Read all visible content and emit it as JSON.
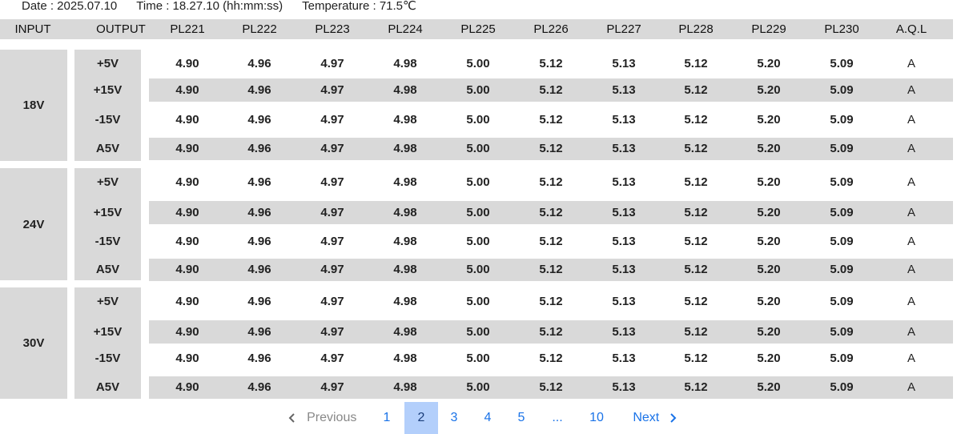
{
  "status": {
    "date": "Date : 2025.07.10",
    "time": "Time : 18.27.10 (hh:mm:ss)",
    "temperature": "Temperature : 71.5℃"
  },
  "table": {
    "headers": [
      "INPUT",
      "OUTPUT",
      "PL221",
      "PL222",
      "PL223",
      "PL224",
      "PL225",
      "PL226",
      "PL227",
      "PL228",
      "PL229",
      "PL230",
      "A.Q.L"
    ],
    "groups": [
      {
        "input": "18V",
        "rows": [
          {
            "output": "+5V",
            "values": [
              "4.90",
              "4.96",
              "4.97",
              "4.98",
              "5.00",
              "5.12",
              "5.13",
              "5.12",
              "5.20",
              "5.09"
            ],
            "aql": "A"
          },
          {
            "output": "+15V",
            "values": [
              "4.90",
              "4.96",
              "4.97",
              "4.98",
              "5.00",
              "5.12",
              "5.13",
              "5.12",
              "5.20",
              "5.09"
            ],
            "aql": "A"
          },
          {
            "output": "-15V",
            "values": [
              "4.90",
              "4.96",
              "4.97",
              "4.98",
              "5.00",
              "5.12",
              "5.13",
              "5.12",
              "5.20",
              "5.09"
            ],
            "aql": "A"
          },
          {
            "output": "A5V",
            "values": [
              "4.90",
              "4.96",
              "4.97",
              "4.98",
              "5.00",
              "5.12",
              "5.13",
              "5.12",
              "5.20",
              "5.09"
            ],
            "aql": "A"
          }
        ]
      },
      {
        "input": "24V",
        "rows": [
          {
            "output": "+5V",
            "values": [
              "4.90",
              "4.96",
              "4.97",
              "4.98",
              "5.00",
              "5.12",
              "5.13",
              "5.12",
              "5.20",
              "5.09"
            ],
            "aql": "A"
          },
          {
            "output": "+15V",
            "values": [
              "4.90",
              "4.96",
              "4.97",
              "4.98",
              "5.00",
              "5.12",
              "5.13",
              "5.12",
              "5.20",
              "5.09"
            ],
            "aql": "A"
          },
          {
            "output": "-15V",
            "values": [
              "4.90",
              "4.96",
              "4.97",
              "4.98",
              "5.00",
              "5.12",
              "5.13",
              "5.12",
              "5.20",
              "5.09"
            ],
            "aql": "A"
          },
          {
            "output": "A5V",
            "values": [
              "4.90",
              "4.96",
              "4.97",
              "4.98",
              "5.00",
              "5.12",
              "5.13",
              "5.12",
              "5.20",
              "5.09"
            ],
            "aql": "A"
          }
        ]
      },
      {
        "input": "30V",
        "rows": [
          {
            "output": "+5V",
            "values": [
              "4.90",
              "4.96",
              "4.97",
              "4.98",
              "5.00",
              "5.12",
              "5.13",
              "5.12",
              "5.20",
              "5.09"
            ],
            "aql": "A"
          },
          {
            "output": "+15V",
            "values": [
              "4.90",
              "4.96",
              "4.97",
              "4.98",
              "5.00",
              "5.12",
              "5.13",
              "5.12",
              "5.20",
              "5.09"
            ],
            "aql": "A"
          },
          {
            "output": "-15V",
            "values": [
              "4.90",
              "4.96",
              "4.97",
              "4.98",
              "5.00",
              "5.12",
              "5.13",
              "5.12",
              "5.20",
              "5.09"
            ],
            "aql": "A"
          },
          {
            "output": "A5V",
            "values": [
              "4.90",
              "4.96",
              "4.97",
              "4.98",
              "5.00",
              "5.12",
              "5.13",
              "5.12",
              "5.20",
              "5.09"
            ],
            "aql": "A"
          }
        ]
      }
    ]
  },
  "pagination": {
    "previous": "Previous",
    "next": "Next",
    "pages": [
      "1",
      "2",
      "3",
      "4",
      "5",
      "...",
      "10"
    ],
    "current_page": "2",
    "prev_icon": "chevron-left-icon",
    "next_icon": "chevron-right-icon"
  },
  "colors": {
    "band": "#d9d9d9",
    "link": "#1a73e8",
    "active_page_bg": "#b3cffb"
  }
}
